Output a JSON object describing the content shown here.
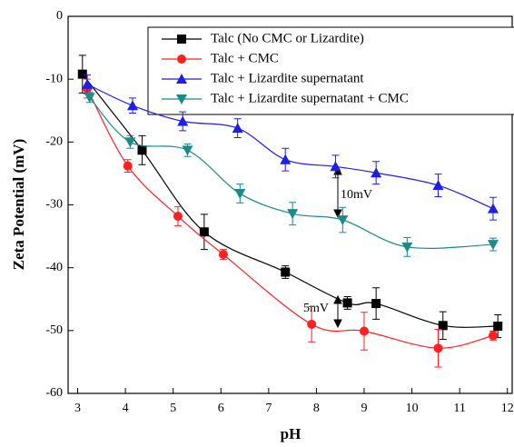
{
  "chart_data": {
    "type": "scatter",
    "x_label": "pH",
    "y_label": "Zeta Potential (mV)",
    "xlim": [
      2.8,
      12.1
    ],
    "xticks": [
      3,
      4,
      5,
      6,
      7,
      8,
      9,
      10,
      11,
      12
    ],
    "ylim": [
      -60,
      0
    ],
    "yticks": [
      -60,
      -50,
      -40,
      -30,
      -20,
      -10,
      0
    ],
    "legend": "top-right",
    "annotations": [
      "10mV",
      "5mV"
    ],
    "series": [
      {
        "name": "Talc (No CMC or Lizardite)",
        "color": "#000000",
        "marker": "square",
        "x": [
          3.1,
          4.35,
          5.65,
          7.35,
          8.65,
          9.25,
          10.65,
          11.8
        ],
        "values": [
          -9.2,
          -21.3,
          -34.3,
          -40.7,
          -45.6,
          -45.7,
          -49.2,
          -49.3
        ],
        "errors": [
          3,
          2.3,
          2.8,
          1,
          1,
          2.5,
          2.2,
          1.8
        ]
      },
      {
        "name": "Talc + CMC",
        "color": "#ff2020",
        "marker": "circle",
        "x": [
          3.2,
          4.05,
          5.1,
          6.05,
          7.9,
          9,
          10.55,
          11.7
        ],
        "values": [
          -11.5,
          -23.8,
          -31.8,
          -37.9,
          -49,
          -50.1,
          -52.8,
          -50.8
        ],
        "errors": [
          1.5,
          1,
          1.5,
          0.8,
          2.8,
          3,
          3,
          0.7
        ]
      },
      {
        "name": "Talc + Lizardite  supernatant",
        "color": "#1e1ee6",
        "marker": "triangle",
        "x": [
          3.2,
          4.15,
          5.2,
          6.35,
          7.35,
          8.4,
          9.25,
          10.55,
          11.7
        ],
        "values": [
          -10.8,
          -14.2,
          -16.7,
          -17.8,
          -22.8,
          -23.9,
          -24.9,
          -26.9,
          -30.6
        ],
        "errors": [
          1.5,
          1.2,
          1.5,
          1.5,
          1.8,
          1.8,
          1.8,
          1.8,
          1.8
        ]
      },
      {
        "name": "Talc + Lizardite  supernatant + CMC",
        "color": "#1a8a8a",
        "marker": "triangle-down",
        "x": [
          3.25,
          4.1,
          5.3,
          6.4,
          7.5,
          8.55,
          9.9,
          11.7
        ],
        "values": [
          -12.9,
          -20,
          -21.3,
          -28.2,
          -31.4,
          -32.4,
          -36.7,
          -36.3
        ],
        "errors": [
          0.8,
          1,
          1,
          1.5,
          1.8,
          2,
          1.5,
          1
        ]
      }
    ]
  }
}
